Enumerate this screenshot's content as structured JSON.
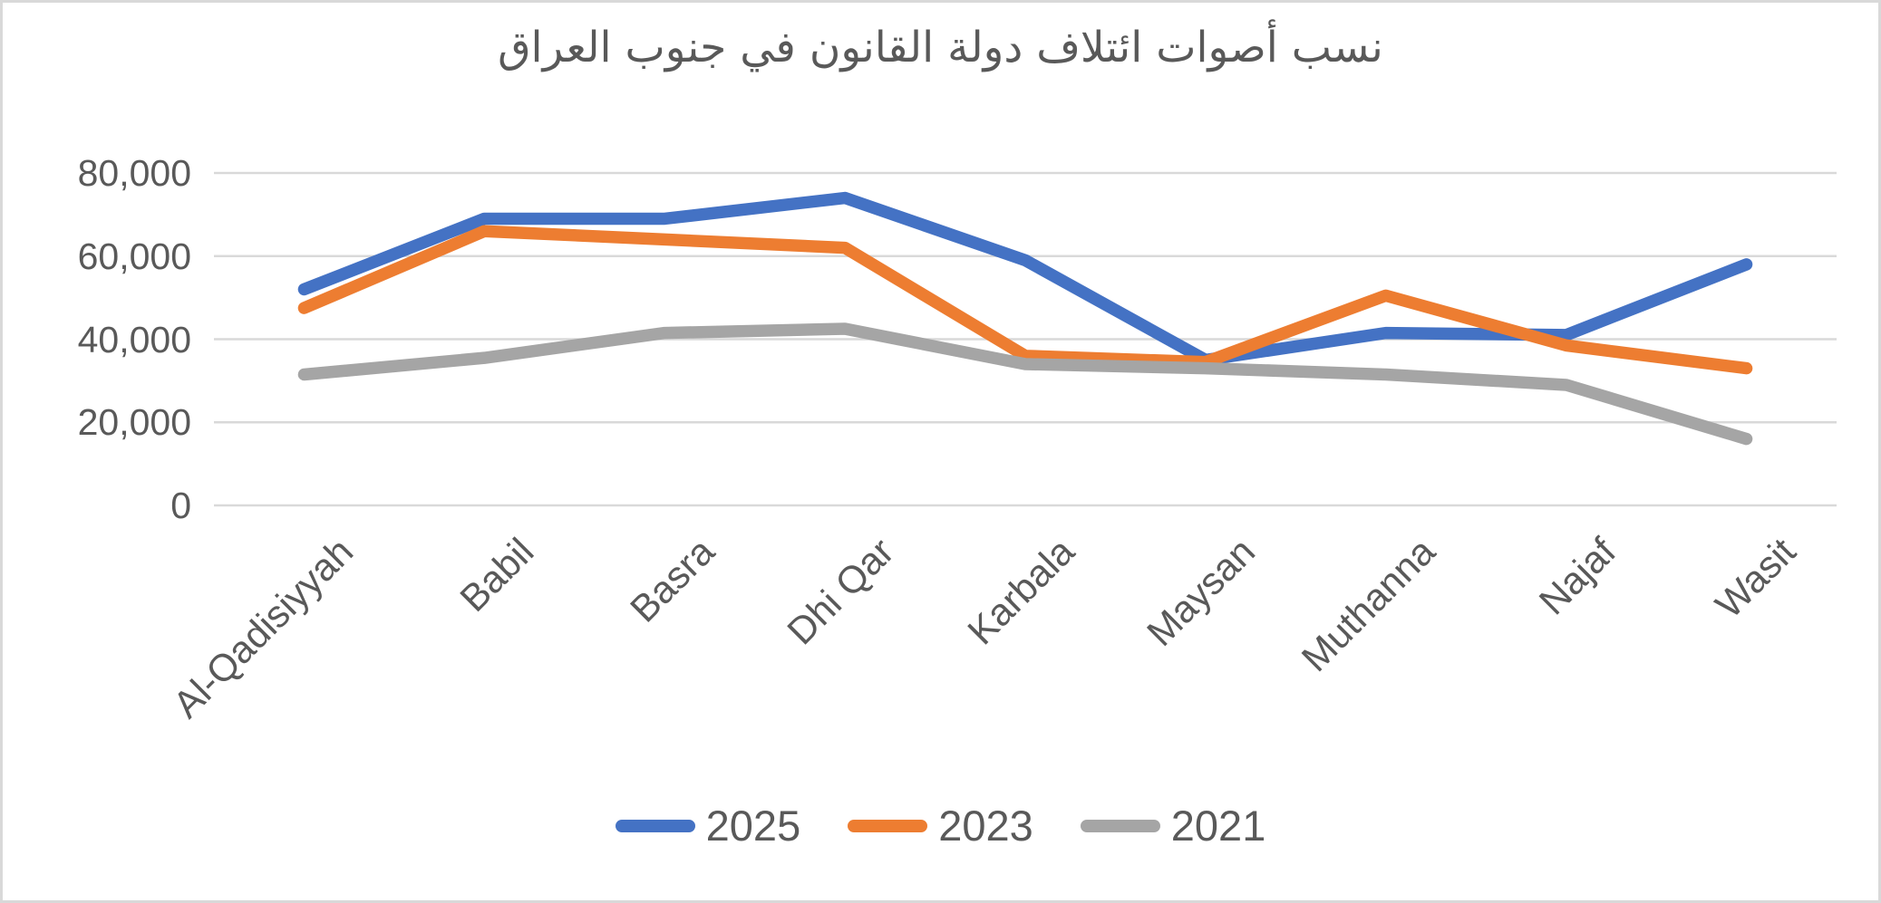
{
  "frame": {
    "background": "#ffffff",
    "border_color": "#d9d9d9",
    "gridline_color": "#d9d9d9",
    "text_color": "#595959"
  },
  "chart_data": {
    "type": "line",
    "title": "نسب أصوات ائتلاف دولة القانون في جنوب العراق",
    "title_translation": "State of Law Coalition vote shares in southern Iraq",
    "categories": [
      "Al-Qadisiyyah",
      "Babil",
      "Basra",
      "Dhi Qar",
      "Karbala",
      "Maysan",
      "Muthanna",
      "Najaf",
      "Wasit"
    ],
    "series": [
      {
        "name": "2025",
        "color": "#4472c4",
        "values": [
          52000,
          69000,
          69000,
          74000,
          59000,
          35000,
          41500,
          41000,
          58000
        ]
      },
      {
        "name": "2023",
        "color": "#ed7d31",
        "values": [
          47500,
          66000,
          64000,
          62000,
          36000,
          34500,
          50500,
          38500,
          33000
        ]
      },
      {
        "name": "2021",
        "color": "#a5a5a5",
        "values": [
          31500,
          35500,
          41500,
          42500,
          34000,
          33000,
          31500,
          29000,
          16000
        ]
      }
    ],
    "y_axis": {
      "min": 0,
      "max": 80000,
      "tick_step": 20000,
      "tick_labels": [
        "0",
        "20,000",
        "40,000",
        "60,000",
        "80,000"
      ]
    },
    "xlabel": "",
    "ylabel": "",
    "grid": "horizontal",
    "legend_position": "bottom"
  }
}
